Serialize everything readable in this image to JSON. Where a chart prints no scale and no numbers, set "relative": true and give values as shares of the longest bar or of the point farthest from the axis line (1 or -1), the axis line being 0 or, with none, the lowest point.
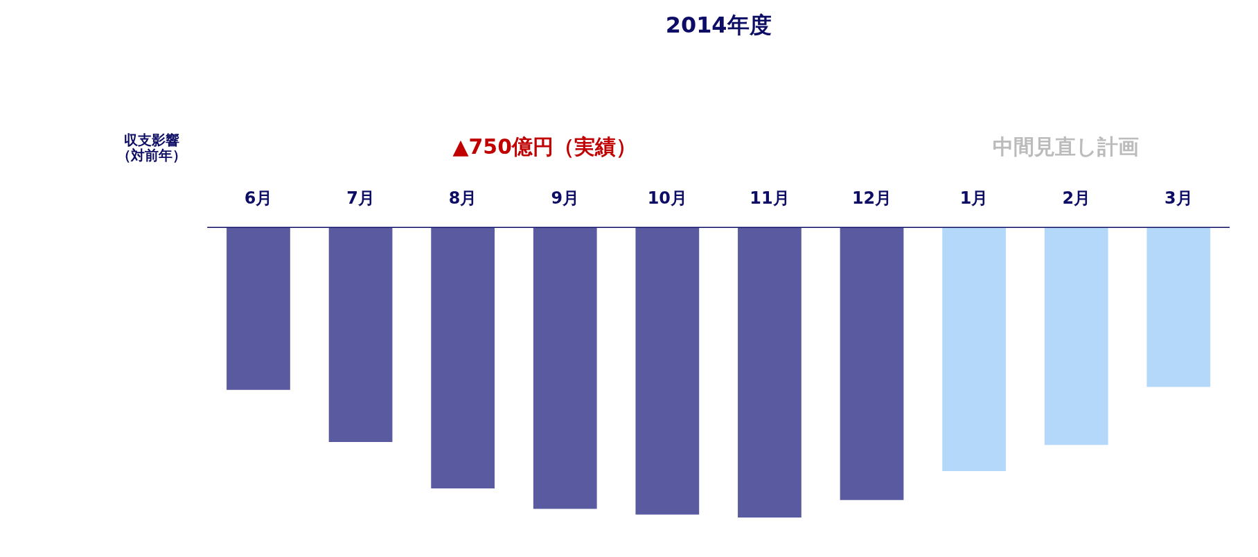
{
  "chart_data": {
    "type": "bar",
    "title": "2014年度",
    "ylabel": "収支影響（対前年）",
    "relative": true,
    "annotations": [
      "▲750億円（実績）",
      "中間見直し計画"
    ],
    "categories": [
      "6月",
      "7月",
      "8月",
      "9月",
      "10月",
      "11月",
      "12月",
      "1月",
      "2月",
      "3月"
    ],
    "values": [
      -0.56,
      -0.74,
      -0.9,
      -0.97,
      -0.99,
      -1,
      -0.94,
      -0.84,
      -0.75,
      -0.55
    ],
    "colors": [
      "#5a5aa0",
      "#5a5aa0",
      "#5a5aa0",
      "#5a5aa0",
      "#5a5aa0",
      "#5a5aa0",
      "#5a5aa0",
      "#b4d8fa",
      "#b4d8fa",
      "#b4d8fa"
    ]
  }
}
